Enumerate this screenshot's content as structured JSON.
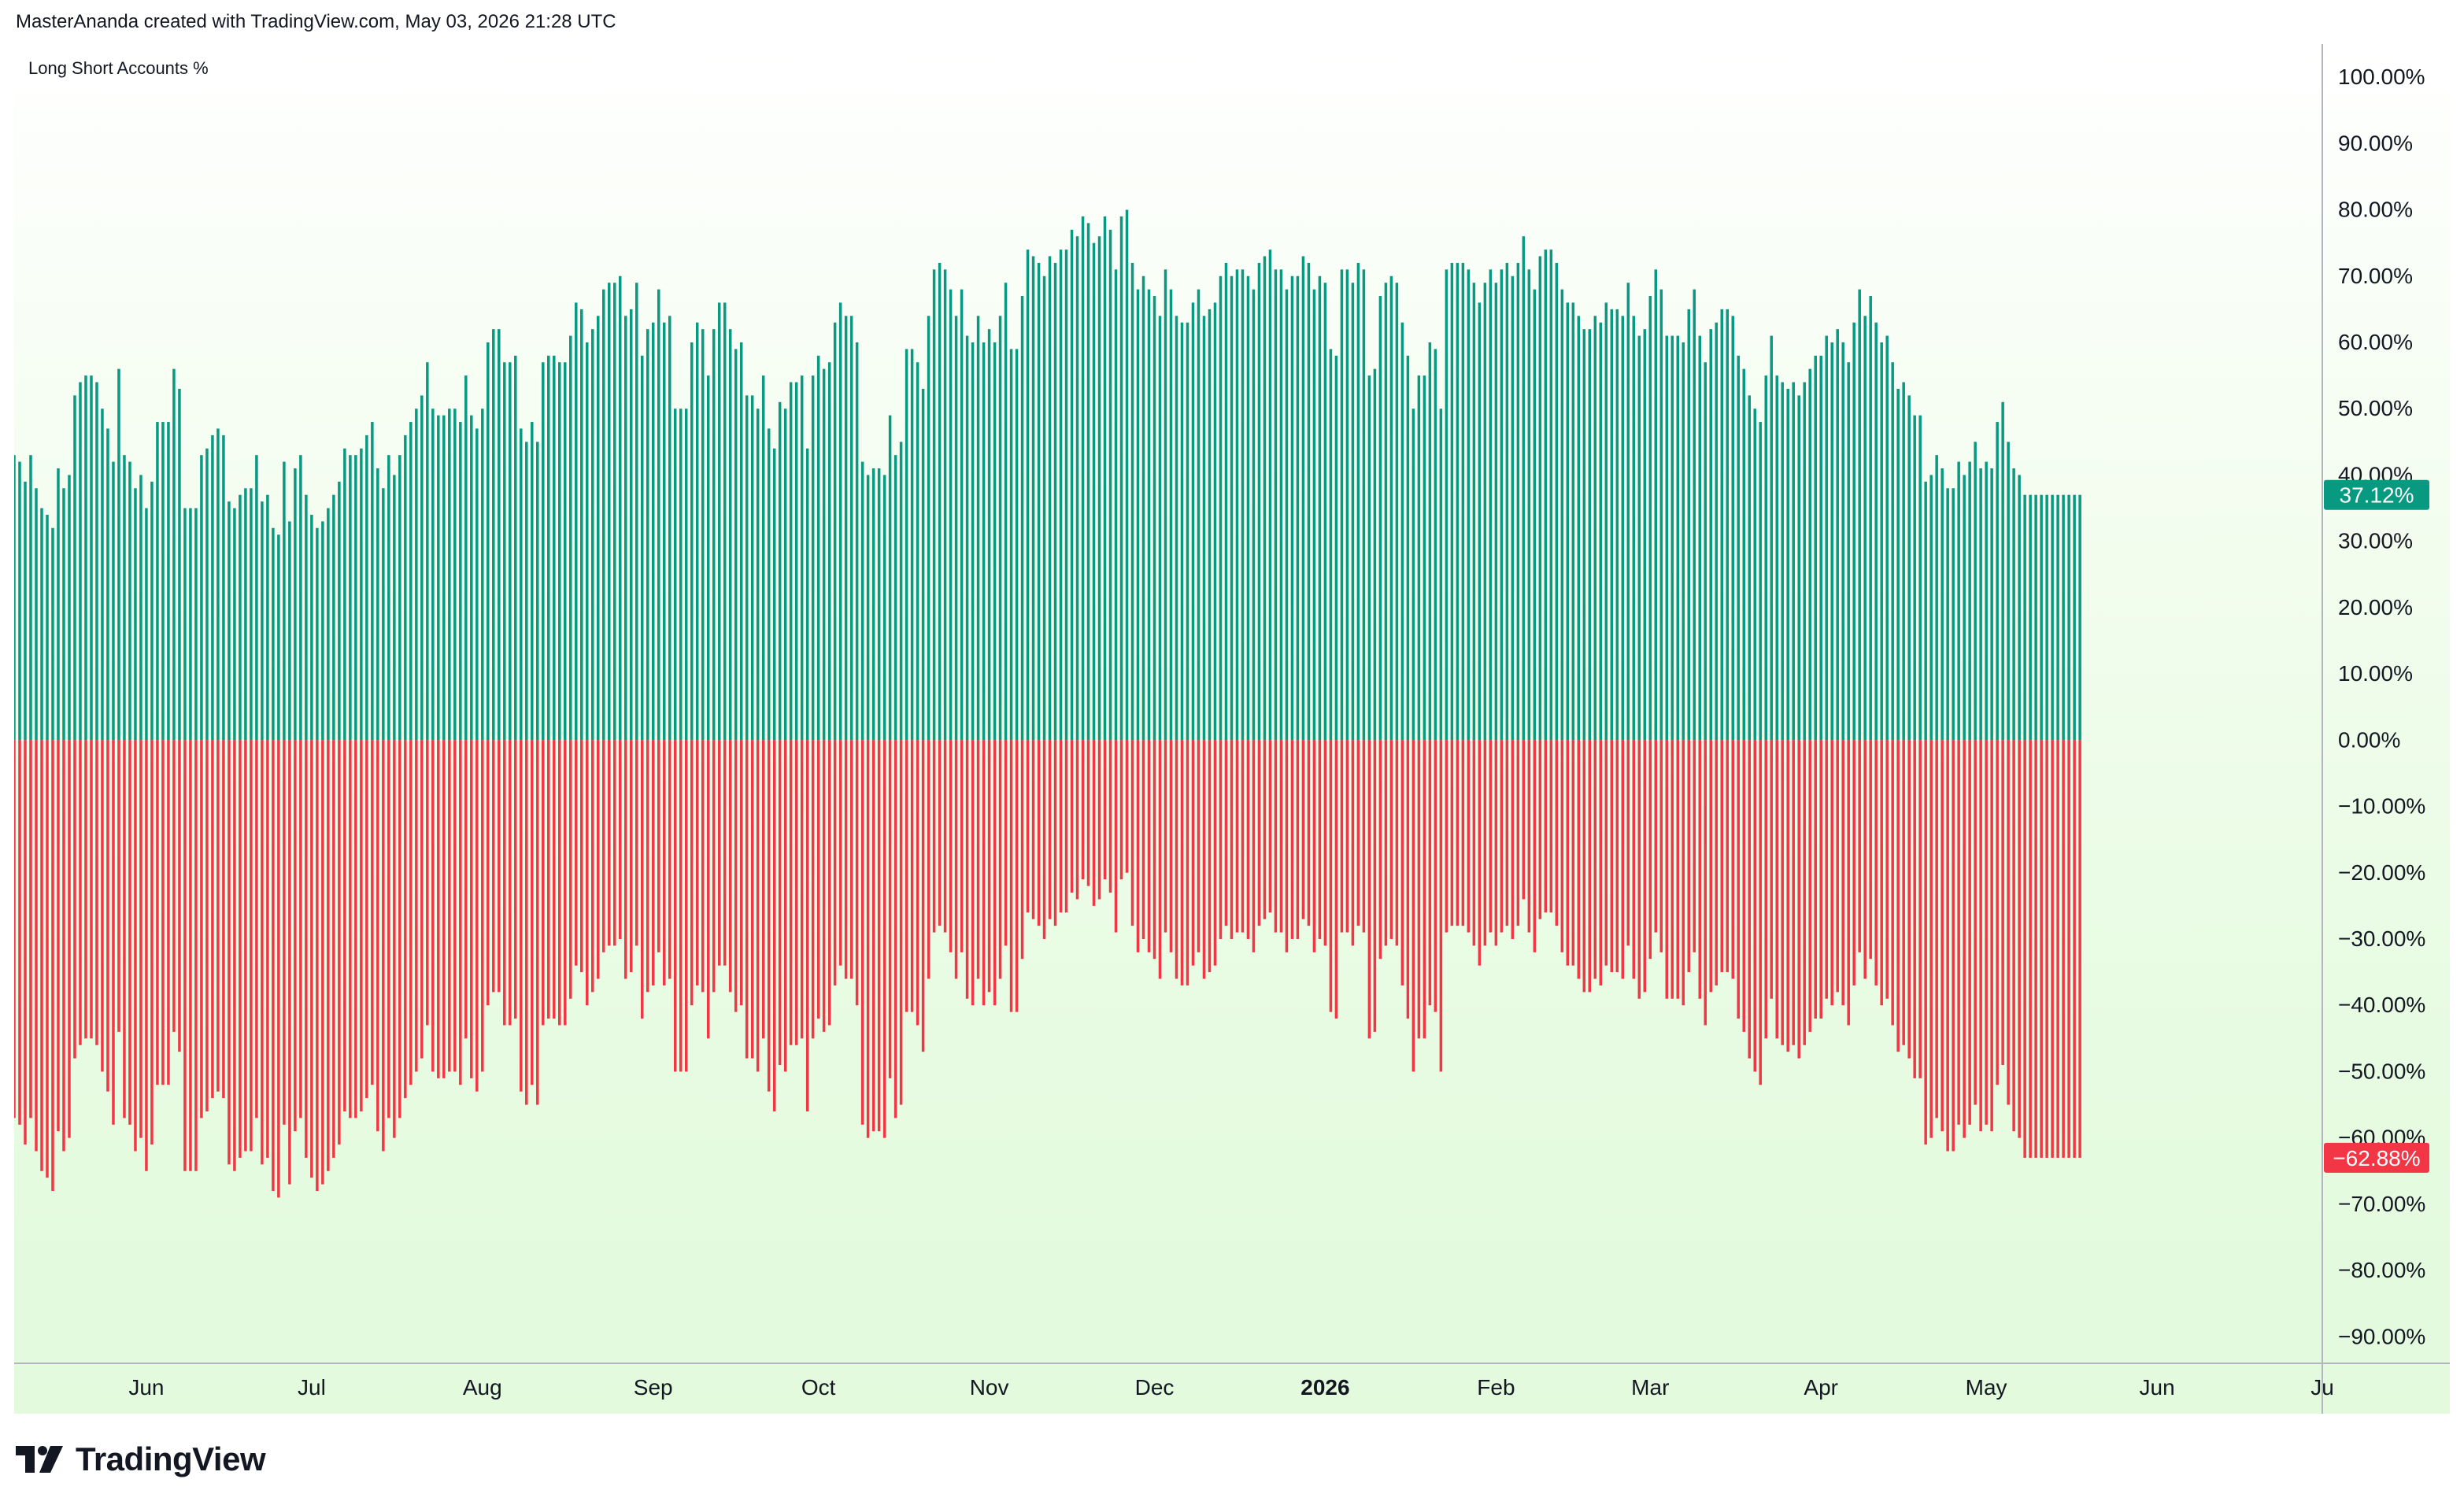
{
  "header": {
    "attribution": "MasterAnanda created with TradingView.com, May 03, 2026 21:28 UTC"
  },
  "footer": {
    "brand": "TradingView"
  },
  "colors": {
    "long": "#089981",
    "short": "#f23645",
    "axis_text": "#131722",
    "axis_line": "#b2b5be"
  },
  "chart_data": {
    "type": "bar",
    "title": "Long Short Accounts %",
    "ylim": [
      -94,
      105
    ],
    "y_ticks": [
      "100.00%",
      "90.00%",
      "80.00%",
      "70.00%",
      "60.00%",
      "50.00%",
      "40.00%",
      "30.00%",
      "20.00%",
      "10.00%",
      "0.00%",
      "−10.00%",
      "−20.00%",
      "−30.00%",
      "−40.00%",
      "−50.00%",
      "−60.00%",
      "−70.00%",
      "−80.00%",
      "−90.00%"
    ],
    "y_tick_values": [
      100,
      90,
      80,
      70,
      60,
      50,
      40,
      30,
      20,
      10,
      0,
      -10,
      -20,
      -30,
      -40,
      -50,
      -60,
      -70,
      -80,
      -90
    ],
    "x_ticks": [
      {
        "label": "Jun",
        "date": "2025-06-01",
        "bold": false
      },
      {
        "label": "Jul",
        "date": "2025-07-01",
        "bold": false
      },
      {
        "label": "Aug",
        "date": "2025-08-01",
        "bold": false
      },
      {
        "label": "Sep",
        "date": "2025-09-01",
        "bold": false
      },
      {
        "label": "Oct",
        "date": "2025-10-01",
        "bold": false
      },
      {
        "label": "Nov",
        "date": "2025-11-01",
        "bold": false
      },
      {
        "label": "Dec",
        "date": "2025-12-01",
        "bold": false
      },
      {
        "label": "2026",
        "date": "2026-01-01",
        "bold": true
      },
      {
        "label": "Feb",
        "date": "2026-02-01",
        "bold": false
      },
      {
        "label": "Mar",
        "date": "2026-03-01",
        "bold": false
      },
      {
        "label": "Apr",
        "date": "2026-04-01",
        "bold": false
      },
      {
        "label": "May",
        "date": "2026-05-01",
        "bold": false
      },
      {
        "label": "Jun",
        "date": "2026-06-01",
        "bold": false
      },
      {
        "label": "Ju",
        "date": "2026-07-01",
        "bold": false
      }
    ],
    "date_range": [
      "2025-05-08",
      "2026-07-01"
    ],
    "series": [
      {
        "name": "Long",
        "color": "#089981",
        "start_date": "2025-05-08",
        "values": [
          43,
          42,
          39,
          43,
          38,
          35,
          34,
          32,
          41,
          38,
          40,
          52,
          54,
          55,
          55,
          54,
          50,
          47,
          42,
          56,
          43,
          42,
          38,
          40,
          35,
          39,
          48,
          48,
          48,
          56,
          53,
          35,
          35,
          35,
          43,
          44,
          46,
          47,
          46,
          36,
          35,
          37,
          38,
          38,
          43,
          36,
          37,
          32,
          31,
          42,
          33,
          41,
          43,
          37,
          34,
          32,
          33,
          35,
          37,
          39,
          44,
          43,
          43,
          44,
          46,
          48,
          41,
          38,
          43,
          40,
          43,
          46,
          48,
          50,
          52,
          57,
          50,
          49,
          49,
          50,
          50,
          48,
          55,
          49,
          47,
          50,
          60,
          62,
          62,
          57,
          57,
          58,
          47,
          45,
          48,
          45,
          57,
          58,
          58,
          57,
          57,
          61,
          66,
          65,
          60,
          62,
          64,
          68,
          69,
          69,
          70,
          64,
          65,
          69,
          58,
          62,
          63,
          68,
          63,
          64,
          50,
          50,
          50,
          60,
          63,
          62,
          55,
          62,
          66,
          66,
          62,
          59,
          60,
          52,
          52,
          50,
          55,
          47,
          44,
          51,
          50,
          54,
          54,
          55,
          44,
          55,
          58,
          56,
          57,
          63,
          66,
          64,
          64,
          60,
          42,
          40,
          41,
          41,
          40,
          49,
          43,
          45,
          59,
          59,
          57,
          53,
          64,
          71,
          72,
          71,
          68,
          64,
          68,
          61,
          60,
          64,
          60,
          62,
          60,
          64,
          69,
          59,
          59,
          67,
          74,
          73,
          72,
          70,
          73,
          72,
          74,
          74,
          77,
          76,
          79,
          78,
          75,
          76,
          79,
          77,
          71,
          79,
          80,
          72,
          68,
          70,
          68,
          67,
          64,
          71,
          68,
          64,
          63,
          63,
          66,
          68,
          64,
          65,
          66,
          70,
          72,
          70,
          71,
          71,
          70,
          68,
          72,
          73,
          74,
          71,
          71,
          68,
          70,
          70,
          73,
          72,
          68,
          70,
          69,
          59,
          58,
          71,
          71,
          69,
          72,
          71,
          55,
          56,
          67,
          69,
          70,
          69,
          63,
          58,
          50,
          55,
          55,
          60,
          59,
          50,
          71,
          72,
          72,
          72,
          71,
          69,
          66,
          69,
          71,
          69,
          71,
          72,
          70,
          72,
          76,
          71,
          68,
          73,
          74,
          74,
          72,
          68,
          66,
          66,
          64,
          62,
          62,
          64,
          63,
          66,
          65,
          65,
          64,
          69,
          64,
          61,
          62,
          67,
          71,
          68,
          61,
          61,
          61,
          60,
          65,
          68,
          61,
          57,
          62,
          63,
          65,
          65,
          64,
          58,
          56,
          52,
          50,
          48,
          55,
          61,
          55,
          54,
          53,
          54,
          52,
          54,
          56,
          58,
          58,
          61,
          60,
          62,
          60,
          57,
          63,
          68,
          64,
          67,
          63,
          60,
          61,
          57,
          53,
          54,
          52,
          49,
          49,
          39,
          40,
          43,
          41,
          38,
          38,
          42,
          40,
          42,
          45,
          41,
          42,
          41,
          48,
          51,
          45,
          41,
          40,
          37,
          37,
          37,
          37,
          37,
          37,
          37,
          37,
          37,
          37,
          37
        ]
      },
      {
        "name": "Short",
        "color": "#f23645",
        "start_date": "2025-05-08",
        "values": [
          -57,
          -58,
          -61,
          -57,
          -62,
          -65,
          -66,
          -68,
          -59,
          -62,
          -60,
          -48,
          -46,
          -45,
          -45,
          -46,
          -50,
          -53,
          -58,
          -44,
          -57,
          -58,
          -62,
          -60,
          -65,
          -61,
          -52,
          -52,
          -52,
          -44,
          -47,
          -65,
          -65,
          -65,
          -57,
          -56,
          -54,
          -53,
          -54,
          -64,
          -65,
          -63,
          -62,
          -62,
          -57,
          -64,
          -63,
          -68,
          -69,
          -58,
          -67,
          -59,
          -57,
          -63,
          -66,
          -68,
          -67,
          -65,
          -63,
          -61,
          -56,
          -57,
          -57,
          -56,
          -54,
          -52,
          -59,
          -62,
          -57,
          -60,
          -57,
          -54,
          -52,
          -50,
          -48,
          -43,
          -50,
          -51,
          -51,
          -50,
          -50,
          -52,
          -45,
          -51,
          -53,
          -50,
          -40,
          -38,
          -38,
          -43,
          -43,
          -42,
          -53,
          -55,
          -52,
          -55,
          -43,
          -42,
          -42,
          -43,
          -43,
          -39,
          -34,
          -35,
          -40,
          -38,
          -36,
          -32,
          -31,
          -31,
          -30,
          -36,
          -35,
          -31,
          -42,
          -38,
          -37,
          -32,
          -37,
          -36,
          -50,
          -50,
          -50,
          -40,
          -37,
          -38,
          -45,
          -38,
          -34,
          -34,
          -38,
          -41,
          -40,
          -48,
          -48,
          -50,
          -45,
          -53,
          -56,
          -49,
          -50,
          -46,
          -46,
          -45,
          -56,
          -45,
          -42,
          -44,
          -43,
          -37,
          -34,
          -36,
          -36,
          -40,
          -58,
          -60,
          -59,
          -59,
          -60,
          -51,
          -57,
          -55,
          -41,
          -41,
          -43,
          -47,
          -36,
          -29,
          -28,
          -29,
          -32,
          -36,
          -32,
          -39,
          -40,
          -36,
          -40,
          -38,
          -40,
          -36,
          -31,
          -41,
          -41,
          -33,
          -26,
          -27,
          -28,
          -30,
          -27,
          -28,
          -26,
          -26,
          -23,
          -24,
          -21,
          -22,
          -25,
          -24,
          -21,
          -23,
          -29,
          -21,
          -20,
          -28,
          -32,
          -30,
          -32,
          -33,
          -36,
          -29,
          -32,
          -36,
          -37,
          -37,
          -34,
          -32,
          -36,
          -35,
          -34,
          -30,
          -28,
          -30,
          -29,
          -29,
          -30,
          -32,
          -28,
          -27,
          -26,
          -29,
          -29,
          -32,
          -30,
          -30,
          -27,
          -28,
          -32,
          -30,
          -31,
          -41,
          -42,
          -29,
          -29,
          -31,
          -28,
          -29,
          -45,
          -44,
          -33,
          -31,
          -30,
          -31,
          -37,
          -42,
          -50,
          -45,
          -45,
          -40,
          -41,
          -50,
          -29,
          -28,
          -28,
          -28,
          -29,
          -31,
          -34,
          -31,
          -29,
          -31,
          -29,
          -28,
          -30,
          -28,
          -24,
          -29,
          -32,
          -27,
          -26,
          -26,
          -28,
          -32,
          -34,
          -34,
          -36,
          -38,
          -38,
          -36,
          -37,
          -34,
          -35,
          -35,
          -36,
          -31,
          -36,
          -39,
          -38,
          -33,
          -29,
          -32,
          -39,
          -39,
          -39,
          -40,
          -35,
          -32,
          -39,
          -43,
          -38,
          -37,
          -35,
          -35,
          -36,
          -42,
          -44,
          -48,
          -50,
          -52,
          -45,
          -39,
          -45,
          -46,
          -47,
          -46,
          -48,
          -46,
          -44,
          -42,
          -42,
          -39,
          -40,
          -38,
          -40,
          -43,
          -37,
          -32,
          -36,
          -33,
          -37,
          -40,
          -39,
          -43,
          -47,
          -46,
          -48,
          -51,
          -51,
          -61,
          -60,
          -57,
          -59,
          -62,
          -62,
          -58,
          -60,
          -58,
          -55,
          -59,
          -58,
          -59,
          -52,
          -49,
          -55,
          -59,
          -60,
          -63,
          -63,
          -63,
          -63,
          -63,
          -63,
          -63,
          -63,
          -63,
          -63,
          -63
        ]
      }
    ],
    "last_long_label": "37.12%",
    "last_short_label": "−62.88%"
  }
}
